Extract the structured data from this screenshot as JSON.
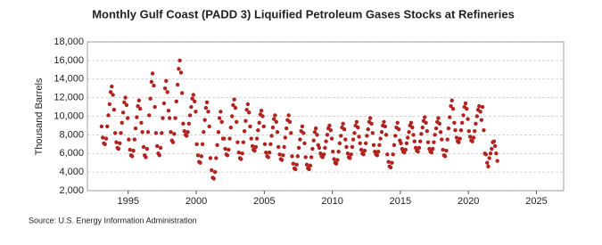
{
  "chart_data": {
    "type": "scatter",
    "title": "Monthly Gulf Coast (PADD 3) Liquified Petroleum Gases Stocks at Refineries",
    "y_label": "Thousand Barrels",
    "source": "Source: U.S. Energy Information Administration",
    "color": "#b0231e",
    "grid": true,
    "xlim": [
      1992,
      2027
    ],
    "xticks": [
      1995,
      2000,
      2005,
      2010,
      2015,
      2020,
      2025
    ],
    "ylim": [
      2000,
      18000
    ],
    "yticks": [
      {
        "value": 2000,
        "label": "2,000"
      },
      {
        "value": 4000,
        "label": "4,000"
      },
      {
        "value": 6000,
        "label": "6,000"
      },
      {
        "value": 8000,
        "label": "8,000"
      },
      {
        "value": 10000,
        "label": "10,000"
      },
      {
        "value": 12000,
        "label": "12,000"
      },
      {
        "value": 14000,
        "label": "14,000"
      },
      {
        "value": 16000,
        "label": "16,000"
      },
      {
        "value": 18000,
        "label": "18,000"
      }
    ],
    "x": [
      1993.04,
      1993.13,
      1993.21,
      1993.29,
      1993.38,
      1993.46,
      1993.54,
      1993.63,
      1993.71,
      1993.79,
      1993.88,
      1993.96,
      1994.04,
      1994.13,
      1994.21,
      1994.29,
      1994.38,
      1994.46,
      1994.54,
      1994.63,
      1994.71,
      1994.79,
      1994.88,
      1994.96,
      1995.04,
      1995.13,
      1995.21,
      1995.29,
      1995.38,
      1995.46,
      1995.54,
      1995.63,
      1995.71,
      1995.79,
      1995.88,
      1995.96,
      1996.04,
      1996.13,
      1996.21,
      1996.29,
      1996.38,
      1996.46,
      1996.54,
      1996.63,
      1996.71,
      1996.79,
      1996.88,
      1996.96,
      1997.04,
      1997.13,
      1997.21,
      1997.29,
      1997.38,
      1997.46,
      1997.54,
      1997.63,
      1997.71,
      1997.79,
      1997.88,
      1997.96,
      1998.04,
      1998.13,
      1998.21,
      1998.29,
      1998.38,
      1998.46,
      1998.54,
      1998.63,
      1998.71,
      1998.79,
      1998.88,
      1998.96,
      1999.04,
      1999.13,
      1999.21,
      1999.29,
      1999.38,
      1999.46,
      1999.54,
      1999.63,
      1999.71,
      1999.79,
      1999.88,
      1999.96,
      2000.04,
      2000.13,
      2000.21,
      2000.29,
      2000.38,
      2000.46,
      2000.54,
      2000.63,
      2000.71,
      2000.79,
      2000.88,
      2000.96,
      2001.04,
      2001.13,
      2001.21,
      2001.29,
      2001.38,
      2001.46,
      2001.54,
      2001.63,
      2001.71,
      2001.79,
      2001.88,
      2001.96,
      2002.04,
      2002.13,
      2002.21,
      2002.29,
      2002.38,
      2002.46,
      2002.54,
      2002.63,
      2002.71,
      2002.79,
      2002.88,
      2002.96,
      2003.04,
      2003.13,
      2003.21,
      2003.29,
      2003.38,
      2003.46,
      2003.54,
      2003.63,
      2003.71,
      2003.79,
      2003.88,
      2003.96,
      2004.04,
      2004.13,
      2004.21,
      2004.29,
      2004.38,
      2004.46,
      2004.54,
      2004.63,
      2004.71,
      2004.79,
      2004.88,
      2004.96,
      2005.04,
      2005.13,
      2005.21,
      2005.29,
      2005.38,
      2005.46,
      2005.54,
      2005.63,
      2005.71,
      2005.79,
      2005.88,
      2005.96,
      2006.04,
      2006.13,
      2006.21,
      2006.29,
      2006.38,
      2006.46,
      2006.54,
      2006.63,
      2006.71,
      2006.79,
      2006.88,
      2006.96,
      2007.04,
      2007.13,
      2007.21,
      2007.29,
      2007.38,
      2007.46,
      2007.54,
      2007.63,
      2007.71,
      2007.79,
      2007.88,
      2007.96,
      2008.04,
      2008.13,
      2008.21,
      2008.29,
      2008.38,
      2008.46,
      2008.54,
      2008.63,
      2008.71,
      2008.79,
      2008.88,
      2008.96,
      2009.04,
      2009.13,
      2009.21,
      2009.29,
      2009.38,
      2009.46,
      2009.54,
      2009.63,
      2009.71,
      2009.79,
      2009.88,
      2009.96,
      2010.04,
      2010.13,
      2010.21,
      2010.29,
      2010.38,
      2010.46,
      2010.54,
      2010.63,
      2010.71,
      2010.79,
      2010.88,
      2010.96,
      2011.04,
      2011.13,
      2011.21,
      2011.29,
      2011.38,
      2011.46,
      2011.54,
      2011.63,
      2011.71,
      2011.79,
      2011.88,
      2011.96,
      2012.04,
      2012.13,
      2012.21,
      2012.29,
      2012.38,
      2012.46,
      2012.54,
      2012.63,
      2012.71,
      2012.79,
      2012.88,
      2012.96,
      2013.04,
      2013.13,
      2013.21,
      2013.29,
      2013.38,
      2013.46,
      2013.54,
      2013.63,
      2013.71,
      2013.79,
      2013.88,
      2013.96,
      2014.04,
      2014.13,
      2014.21,
      2014.29,
      2014.38,
      2014.46,
      2014.54,
      2014.63,
      2014.71,
      2014.79,
      2014.88,
      2014.96,
      2015.04,
      2015.13,
      2015.21,
      2015.29,
      2015.38,
      2015.46,
      2015.54,
      2015.63,
      2015.71,
      2015.79,
      2015.88,
      2015.96,
      2016.04,
      2016.13,
      2016.21,
      2016.29,
      2016.38,
      2016.46,
      2016.54,
      2016.63,
      2016.71,
      2016.79,
      2016.88,
      2016.96,
      2017.04,
      2017.13,
      2017.21,
      2017.29,
      2017.38,
      2017.46,
      2017.54,
      2017.63,
      2017.71,
      2017.79,
      2017.88,
      2017.96,
      2018.04,
      2018.13,
      2018.21,
      2018.29,
      2018.38,
      2018.46,
      2018.54,
      2018.63,
      2018.71,
      2018.79,
      2018.88,
      2018.96,
      2019.04,
      2019.13,
      2019.21,
      2019.29,
      2019.38,
      2019.46,
      2019.54,
      2019.63,
      2019.71,
      2019.79,
      2019.88,
      2019.96,
      2020.04,
      2020.13,
      2020.21,
      2020.29,
      2020.38,
      2020.46,
      2020.54,
      2020.63,
      2020.71,
      2020.79,
      2020.88,
      2020.96,
      2021.04,
      2021.13,
      2021.21,
      2021.29,
      2021.38,
      2021.46,
      2021.54,
      2021.63,
      2021.71,
      2021.79,
      2021.88,
      2021.96,
      2022.04,
      2022.13
    ],
    "values": [
      8900,
      7700,
      7100,
      7000,
      7600,
      8900,
      10100,
      11300,
      12600,
      13200,
      12300,
      10700,
      8200,
      7200,
      6600,
      6500,
      7100,
      8200,
      9300,
      10400,
      11500,
      12000,
      11200,
      9800,
      7500,
      6400,
      5800,
      5700,
      6300,
      7500,
      8700,
      9900,
      11100,
      11700,
      10800,
      9300,
      8300,
      6700,
      5800,
      5600,
      6500,
      8300,
      10100,
      11900,
      13700,
      14600,
      13300,
      11000,
      8200,
      6800,
      6000,
      5800,
      6600,
      8200,
      9800,
      11400,
      13000,
      13800,
      12600,
      10600,
      9800,
      8300,
      7400,
      7200,
      8100,
      9800,
      11600,
      13400,
      15100,
      16000,
      14700,
      12500,
      9200,
      8400,
      8000,
      7900,
      8300,
      9200,
      10100,
      11000,
      11900,
      12300,
      11600,
      10500,
      7000,
      5800,
      5100,
      5000,
      5700,
      7000,
      8300,
      9600,
      10900,
      11500,
      10500,
      8900,
      5500,
      4200,
      3400,
      3300,
      4000,
      5500,
      6900,
      8300,
      9800,
      10500,
      9400,
      7600,
      7600,
      6500,
      5900,
      5800,
      6400,
      7600,
      8800,
      10000,
      11200,
      11800,
      10900,
      9400,
      7200,
      6100,
      5500,
      5400,
      6000,
      7200,
      8400,
      9500,
      10700,
      11300,
      10400,
      8900,
      7600,
      6800,
      6400,
      6300,
      6700,
      7600,
      8500,
      9300,
      10200,
      10600,
      10000,
      8900,
      7000,
      6100,
      5700,
      5600,
      6100,
      7000,
      7900,
      8800,
      9700,
      10100,
      9400,
      8300,
      6700,
      5900,
      5400,
      5300,
      5800,
      6700,
      7700,
      8700,
      9600,
      10100,
      9400,
      8200,
      5700,
      4900,
      4400,
      4300,
      4800,
      5700,
      6600,
      7500,
      8400,
      8900,
      8200,
      7100,
      5600,
      4800,
      4400,
      4300,
      4700,
      5600,
      6500,
      7400,
      8300,
      8700,
      8000,
      6900,
      6600,
      6000,
      5700,
      5600,
      5900,
      6600,
      7300,
      8000,
      8700,
      9000,
      8500,
      7600,
      6200,
      5400,
      5000,
      4900,
      5300,
      6200,
      7100,
      7900,
      8800,
      9200,
      8600,
      7500,
      6700,
      6000,
      5600,
      5500,
      5900,
      6700,
      7500,
      8200,
      9000,
      9400,
      8800,
      7800,
      7100,
      6400,
      6000,
      5900,
      6300,
      7100,
      7900,
      8600,
      9400,
      9800,
      9200,
      8200,
      6900,
      6200,
      5900,
      5800,
      6200,
      6900,
      7600,
      8300,
      9000,
      9400,
      8900,
      8000,
      5900,
      5100,
      4600,
      4500,
      5000,
      5900,
      6900,
      7900,
      8800,
      9300,
      8600,
      7400,
      7100,
      6500,
      6200,
      6100,
      6400,
      7100,
      7700,
      8300,
      9000,
      9300,
      8800,
      8000,
      7300,
      6600,
      6300,
      6200,
      6600,
      7300,
      8100,
      8800,
      9500,
      9900,
      9300,
      8400,
      7200,
      6500,
      6200,
      6100,
      6500,
      7200,
      8000,
      8700,
      9400,
      9800,
      9200,
      8300,
      7500,
      6400,
      5800,
      5700,
      6300,
      7500,
      8700,
      9900,
      11100,
      11700,
      10800,
      9300,
      8500,
      7700,
      7300,
      7200,
      7600,
      8500,
      9300,
      10100,
      11000,
      11400,
      10800,
      9700,
      8400,
      7800,
      7400,
      7300,
      7700,
      8400,
      9200,
      10000,
      10700,
      11100,
      10500,
      9600,
      11000,
      8500,
      6000,
      5900,
      5000,
      4600,
      5500,
      6000,
      6500,
      7200,
      7300,
      6800,
      6000,
      5200
    ]
  }
}
